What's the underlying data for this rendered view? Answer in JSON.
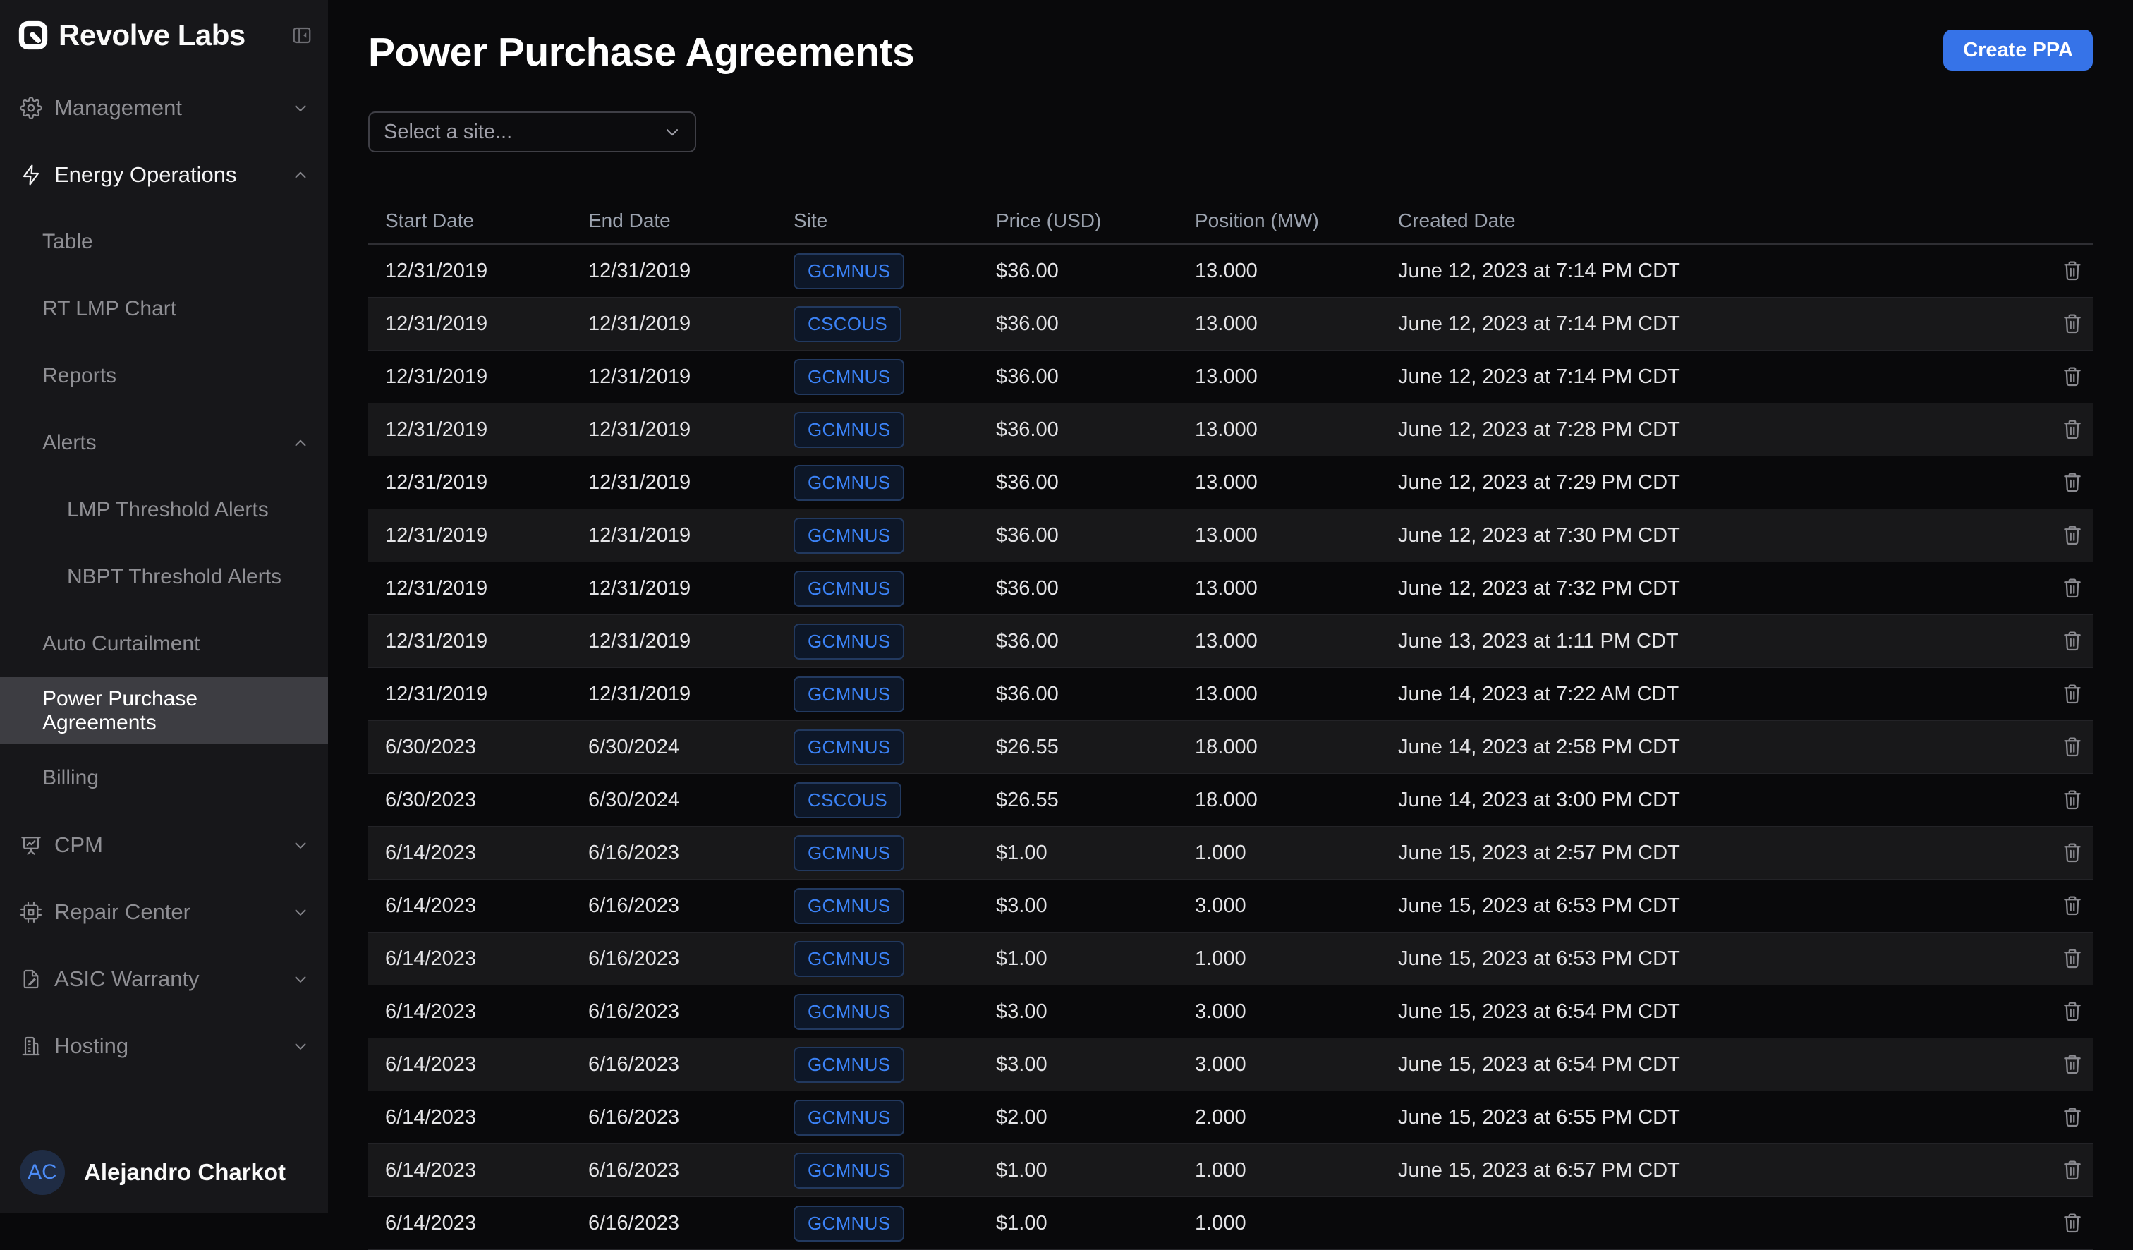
{
  "brand": {
    "name": "Revolve Labs"
  },
  "colors": {
    "accent_blue": "#3b82f6",
    "create_button_blue": "#3673e8",
    "badge_text_blue": "#3b82f6",
    "sidebar_bg": "#17171a",
    "main_bg": "#09090b",
    "active_item_bg": "#3d3d42"
  },
  "sidebar": {
    "collapse_icon": "panel-collapse-icon",
    "items": [
      {
        "label": "Management",
        "icon": "gear",
        "level": 0,
        "chevron": "down"
      },
      {
        "label": "Energy Operations",
        "icon": "bolt",
        "level": 0,
        "chevron": "up",
        "bright": true
      },
      {
        "label": "Table",
        "level": 1
      },
      {
        "label": "RT LMP Chart",
        "level": 1
      },
      {
        "label": "Reports",
        "level": 1
      },
      {
        "label": "Alerts",
        "level": 1,
        "chevron": "up"
      },
      {
        "label": "LMP Threshold Alerts",
        "level": 2
      },
      {
        "label": "NBPT Threshold Alerts",
        "level": 2
      },
      {
        "label": "Auto Curtailment",
        "level": 1
      },
      {
        "label": "Power Purchase Agreements",
        "level": 1,
        "active": true
      },
      {
        "label": "Billing",
        "level": 1
      },
      {
        "label": "CPM",
        "icon": "presentation",
        "level": 0,
        "chevron": "down"
      },
      {
        "label": "Repair Center",
        "icon": "chip",
        "level": 0,
        "chevron": "down"
      },
      {
        "label": "ASIC Warranty",
        "icon": "doc-edit",
        "level": 0,
        "chevron": "down"
      },
      {
        "label": "Hosting",
        "icon": "building",
        "level": 0,
        "chevron": "down"
      }
    ],
    "user": {
      "initials": "AC",
      "name": "Alejandro Charkot"
    }
  },
  "page": {
    "title": "Power Purchase Agreements",
    "create_button_label": "Create PPA",
    "site_select_placeholder": "Select a site..."
  },
  "table": {
    "columns": [
      "Start Date",
      "End Date",
      "Site",
      "Price (USD)",
      "Position (MW)",
      "Created Date"
    ],
    "rows": [
      {
        "start_date": "12/31/2019",
        "end_date": "12/31/2019",
        "site": "GCMNUS",
        "price": "$36.00",
        "position": "13.000",
        "created": "June 12, 2023 at 7:14 PM CDT"
      },
      {
        "start_date": "12/31/2019",
        "end_date": "12/31/2019",
        "site": "CSCOUS",
        "price": "$36.00",
        "position": "13.000",
        "created": "June 12, 2023 at 7:14 PM CDT"
      },
      {
        "start_date": "12/31/2019",
        "end_date": "12/31/2019",
        "site": "GCMNUS",
        "price": "$36.00",
        "position": "13.000",
        "created": "June 12, 2023 at 7:14 PM CDT"
      },
      {
        "start_date": "12/31/2019",
        "end_date": "12/31/2019",
        "site": "GCMNUS",
        "price": "$36.00",
        "position": "13.000",
        "created": "June 12, 2023 at 7:28 PM CDT"
      },
      {
        "start_date": "12/31/2019",
        "end_date": "12/31/2019",
        "site": "GCMNUS",
        "price": "$36.00",
        "position": "13.000",
        "created": "June 12, 2023 at 7:29 PM CDT"
      },
      {
        "start_date": "12/31/2019",
        "end_date": "12/31/2019",
        "site": "GCMNUS",
        "price": "$36.00",
        "position": "13.000",
        "created": "June 12, 2023 at 7:30 PM CDT"
      },
      {
        "start_date": "12/31/2019",
        "end_date": "12/31/2019",
        "site": "GCMNUS",
        "price": "$36.00",
        "position": "13.000",
        "created": "June 12, 2023 at 7:32 PM CDT"
      },
      {
        "start_date": "12/31/2019",
        "end_date": "12/31/2019",
        "site": "GCMNUS",
        "price": "$36.00",
        "position": "13.000",
        "created": "June 13, 2023 at 1:11 PM CDT"
      },
      {
        "start_date": "12/31/2019",
        "end_date": "12/31/2019",
        "site": "GCMNUS",
        "price": "$36.00",
        "position": "13.000",
        "created": "June 14, 2023 at 7:22 AM CDT"
      },
      {
        "start_date": "6/30/2023",
        "end_date": "6/30/2024",
        "site": "GCMNUS",
        "price": "$26.55",
        "position": "18.000",
        "created": "June 14, 2023 at 2:58 PM CDT"
      },
      {
        "start_date": "6/30/2023",
        "end_date": "6/30/2024",
        "site": "CSCOUS",
        "price": "$26.55",
        "position": "18.000",
        "created": "June 14, 2023 at 3:00 PM CDT"
      },
      {
        "start_date": "6/14/2023",
        "end_date": "6/16/2023",
        "site": "GCMNUS",
        "price": "$1.00",
        "position": "1.000",
        "created": "June 15, 2023 at 2:57 PM CDT"
      },
      {
        "start_date": "6/14/2023",
        "end_date": "6/16/2023",
        "site": "GCMNUS",
        "price": "$3.00",
        "position": "3.000",
        "created": "June 15, 2023 at 6:53 PM CDT"
      },
      {
        "start_date": "6/14/2023",
        "end_date": "6/16/2023",
        "site": "GCMNUS",
        "price": "$1.00",
        "position": "1.000",
        "created": "June 15, 2023 at 6:53 PM CDT"
      },
      {
        "start_date": "6/14/2023",
        "end_date": "6/16/2023",
        "site": "GCMNUS",
        "price": "$3.00",
        "position": "3.000",
        "created": "June 15, 2023 at 6:54 PM CDT"
      },
      {
        "start_date": "6/14/2023",
        "end_date": "6/16/2023",
        "site": "GCMNUS",
        "price": "$3.00",
        "position": "3.000",
        "created": "June 15, 2023 at 6:54 PM CDT"
      },
      {
        "start_date": "6/14/2023",
        "end_date": "6/16/2023",
        "site": "GCMNUS",
        "price": "$2.00",
        "position": "2.000",
        "created": "June 15, 2023 at 6:55 PM CDT"
      },
      {
        "start_date": "6/14/2023",
        "end_date": "6/16/2023",
        "site": "GCMNUS",
        "price": "$1.00",
        "position": "1.000",
        "created": "June 15, 2023 at 6:57 PM CDT"
      },
      {
        "start_date": "6/14/2023",
        "end_date": "6/16/2023",
        "site": "GCMNUS",
        "price": "$1.00",
        "position": "1.000",
        "created": "",
        "partial": true
      }
    ]
  }
}
